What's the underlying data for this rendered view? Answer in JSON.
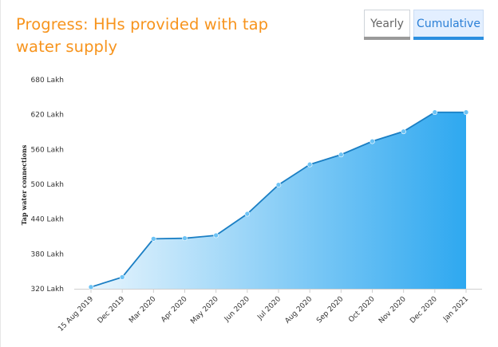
{
  "header": {
    "title": "Progress: HHs provided with tap water supply",
    "tabs": [
      {
        "label": "Yearly",
        "active": false
      },
      {
        "label": "Cumulative",
        "active": true
      }
    ]
  },
  "colors": {
    "title": "#f7941d",
    "line": "#1b7fc4",
    "area_start": "#e8f5fd",
    "area_end": "#2ea8f0",
    "marker": "#6cc3f5"
  },
  "chart_data": {
    "type": "area",
    "title": "",
    "xlabel": "",
    "ylabel": "Tap water connections",
    "y_unit_suffix": " Lakh",
    "ylim": [
      320,
      680
    ],
    "yticks": [
      320,
      380,
      440,
      500,
      560,
      620,
      680
    ],
    "ytick_labels": [
      "320 Lakh",
      "380 Lakh",
      "440 Lakh",
      "500 Lakh",
      "560 Lakh",
      "620 Lakh",
      "680 Lakh"
    ],
    "categories": [
      "15 Aug 2019",
      "Dec 2019",
      "Mar 2020",
      "Apr 2020",
      "May 2020",
      "Jun 2020",
      "Jul 2020",
      "Aug 2020",
      "Sep 2020",
      "Oct 2020",
      "Nov 2020",
      "Dec 2020",
      "Jan 2021"
    ],
    "values": [
      323,
      340,
      406,
      407,
      412,
      449,
      499,
      534,
      551,
      574,
      591,
      624,
      624
    ],
    "grid": false
  }
}
